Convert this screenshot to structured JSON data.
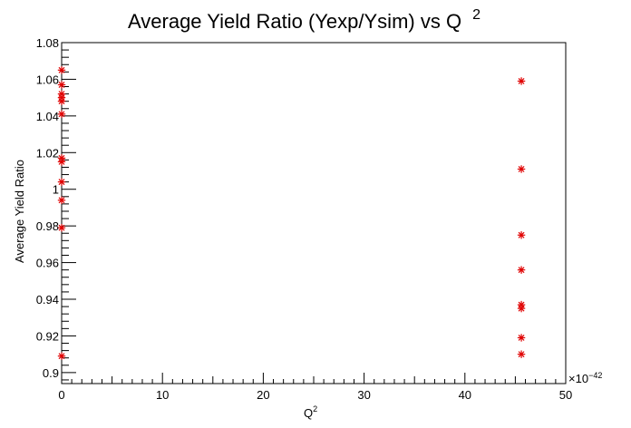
{
  "chart_data": {
    "type": "scatter",
    "title": "Average Yield Ratio (Yexp/Ysim) vs Q",
    "title_superscript": "2",
    "xlabel": "Q",
    "xlabel_superscript": "2",
    "ylabel": "Average Yield Ratio",
    "x_exponent_label": "×10",
    "x_exponent_power": "−42",
    "xlim": [
      0,
      50
    ],
    "ylim": [
      0.894,
      1.08
    ],
    "x_ticks": [
      0,
      10,
      20,
      30,
      40,
      50
    ],
    "x_tick_labels": [
      "0",
      "10",
      "20",
      "30",
      "40",
      "50"
    ],
    "y_ticks": [
      0.9,
      0.92,
      0.94,
      0.96,
      0.98,
      1.0,
      1.02,
      1.04,
      1.06,
      1.08
    ],
    "y_tick_labels": [
      "0.9",
      "0.92",
      "0.94",
      "0.96",
      "0.98",
      "1",
      "1.02",
      "1.04",
      "1.06",
      "1.08"
    ],
    "grid": false,
    "marker": "asterisk",
    "marker_color": "#e00000",
    "series": [
      {
        "points": [
          {
            "x": 0.0,
            "y": 1.065
          },
          {
            "x": 0.0,
            "y": 1.057
          },
          {
            "x": 0.0,
            "y": 1.052
          },
          {
            "x": 0.0,
            "y": 1.05
          },
          {
            "x": 0.0,
            "y": 1.048
          },
          {
            "x": 0.0,
            "y": 1.041
          },
          {
            "x": 0.0,
            "y": 1.017
          },
          {
            "x": 0.0,
            "y": 1.015
          },
          {
            "x": 0.0,
            "y": 1.004
          },
          {
            "x": 0.0,
            "y": 0.994
          },
          {
            "x": 0.0,
            "y": 0.979
          },
          {
            "x": 0.0,
            "y": 0.909
          },
          {
            "x": 45.6,
            "y": 1.059
          },
          {
            "x": 45.6,
            "y": 1.011
          },
          {
            "x": 45.6,
            "y": 0.975
          },
          {
            "x": 45.6,
            "y": 0.956
          },
          {
            "x": 45.6,
            "y": 0.937
          },
          {
            "x": 45.6,
            "y": 0.935
          },
          {
            "x": 45.6,
            "y": 0.919
          },
          {
            "x": 45.6,
            "y": 0.91
          }
        ]
      }
    ]
  }
}
